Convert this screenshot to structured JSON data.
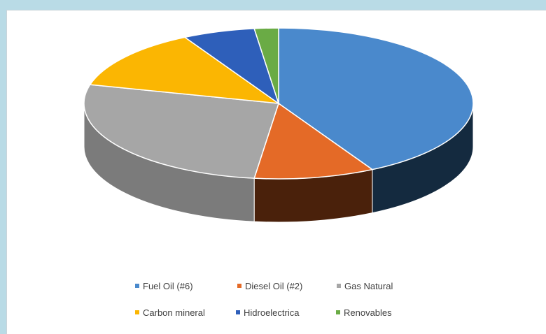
{
  "chart_data": {
    "type": "pie",
    "title": "",
    "legend_position": "bottom",
    "slices": [
      {
        "label": "Fuel Oil (#6)",
        "value": 42,
        "color": "#4a89cc",
        "side_color": "#142a3f"
      },
      {
        "label": "Diesel Oil (#2)",
        "value": 10,
        "color": "#e46a27",
        "side_color": "#4a210b"
      },
      {
        "label": "Gas Natural",
        "value": 27,
        "color": "#a6a6a6",
        "side_color": "#7b7b7b"
      },
      {
        "label": "Carbon mineral",
        "value": 13,
        "color": "#fbb602",
        "side_color": "#9a7002"
      },
      {
        "label": "Hidroelectrica",
        "value": 6,
        "color": "#2e5fba",
        "side_color": "#1b3870"
      },
      {
        "label": "Renovables",
        "value": 2,
        "color": "#6aab45",
        "side_color": "#3e6a26"
      }
    ]
  }
}
